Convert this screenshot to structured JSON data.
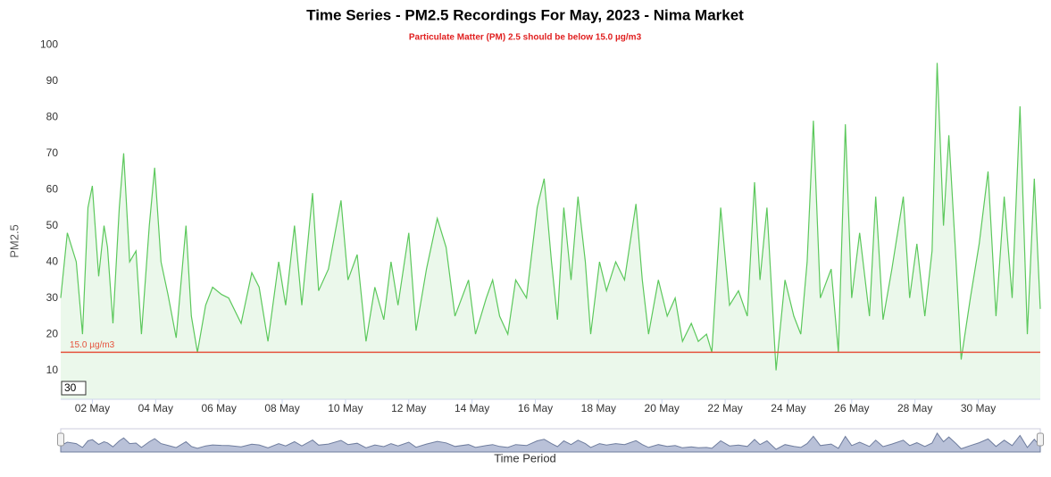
{
  "chart_data": {
    "type": "area",
    "title": "Time Series - PM2.5 Recordings For May, 2023 - Nima Market",
    "subtitle": "Particulate Matter (PM) 2.5 should be below 15.0 µg/m3",
    "y_label": "PM2.5",
    "x_label": "Time Period",
    "threshold": 15,
    "threshold_label": "15.0 µg/m3",
    "threshold_color": "#e5533d",
    "zoom_input": "30",
    "x": [
      1.0,
      1.21,
      1.49,
      1.69,
      1.86,
      2.0,
      2.2,
      2.37,
      2.48,
      2.65,
      2.85,
      2.99,
      3.18,
      3.38,
      3.55,
      3.8,
      3.97,
      4.17,
      4.39,
      4.65,
      4.96,
      5.13,
      5.32,
      5.58,
      5.8,
      6.08,
      6.31,
      6.7,
      7.04,
      7.27,
      7.55,
      7.89,
      8.11,
      8.39,
      8.62,
      8.96,
      9.15,
      9.46,
      9.86,
      10.08,
      10.37,
      10.65,
      10.93,
      11.21,
      11.44,
      11.66,
      12.0,
      12.23,
      12.56,
      12.9,
      13.18,
      13.46,
      13.89,
      14.11,
      14.45,
      14.65,
      14.87,
      15.13,
      15.38,
      15.72,
      16.06,
      16.28,
      16.51,
      16.7,
      16.9,
      17.13,
      17.35,
      17.58,
      17.75,
      18.03,
      18.25,
      18.54,
      18.82,
      19.18,
      19.38,
      19.58,
      19.89,
      20.17,
      20.42,
      20.65,
      20.93,
      21.15,
      21.41,
      21.58,
      21.86,
      22.14,
      22.42,
      22.7,
      22.93,
      23.1,
      23.32,
      23.61,
      23.89,
      24.17,
      24.39,
      24.59,
      24.79,
      25.01,
      25.35,
      25.58,
      25.8,
      26.0,
      26.25,
      26.56,
      26.76,
      26.99,
      27.27,
      27.63,
      27.83,
      28.06,
      28.31,
      28.54,
      28.7,
      28.9,
      29.07,
      29.3,
      29.46,
      29.75,
      30.03,
      30.31,
      30.56,
      30.82,
      31.07,
      31.32,
      31.55,
      31.77,
      31.96
    ],
    "series": [
      {
        "name": "PM2.5",
        "color": "#5cc85c",
        "fill": "rgba(92,200,92,0.12)",
        "values": [
          30,
          48,
          40,
          20,
          55,
          61,
          36,
          50,
          44,
          23,
          55,
          70,
          40,
          43,
          20,
          50,
          66,
          40,
          31,
          19,
          50,
          25,
          15,
          28,
          33,
          31,
          30,
          23,
          37,
          33,
          18,
          40,
          28,
          50,
          28,
          59,
          32,
          38,
          57,
          35,
          42,
          18,
          33,
          24,
          40,
          28,
          48,
          21,
          38,
          52,
          44,
          25,
          35,
          20,
          30,
          35,
          25,
          20,
          35,
          30,
          55,
          63,
          40,
          24,
          55,
          35,
          58,
          40,
          20,
          40,
          32,
          40,
          35,
          56,
          35,
          20,
          35,
          25,
          30,
          18,
          23,
          18,
          20,
          15,
          55,
          28,
          32,
          25,
          62,
          35,
          55,
          10,
          35,
          25,
          20,
          40,
          79,
          30,
          38,
          15,
          78,
          30,
          48,
          25,
          58,
          24,
          38,
          58,
          30,
          45,
          25,
          43,
          95,
          50,
          75,
          40,
          13,
          30,
          45,
          65,
          25,
          58,
          30,
          83,
          20,
          63,
          27
        ]
      }
    ],
    "xlim": [
      1,
      31.96
    ],
    "ylim": [
      2,
      102.5
    ],
    "xticks": [
      {
        "value": 2,
        "label": "02 May"
      },
      {
        "value": 4,
        "label": "04 May"
      },
      {
        "value": 6,
        "label": "06 May"
      },
      {
        "value": 8,
        "label": "08 May"
      },
      {
        "value": 10,
        "label": "10 May"
      },
      {
        "value": 12,
        "label": "12 May"
      },
      {
        "value": 14,
        "label": "14 May"
      },
      {
        "value": 16,
        "label": "16 May"
      },
      {
        "value": 18,
        "label": "18 May"
      },
      {
        "value": 20,
        "label": "20 May"
      },
      {
        "value": 22,
        "label": "22 May"
      },
      {
        "value": 24,
        "label": "24 May"
      },
      {
        "value": 26,
        "label": "26 May"
      },
      {
        "value": 28,
        "label": "28 May"
      },
      {
        "value": 30,
        "label": "30 May"
      }
    ],
    "yticks": [
      10,
      20,
      30,
      40,
      50,
      60,
      70,
      80,
      90,
      100
    ],
    "grid": false
  }
}
